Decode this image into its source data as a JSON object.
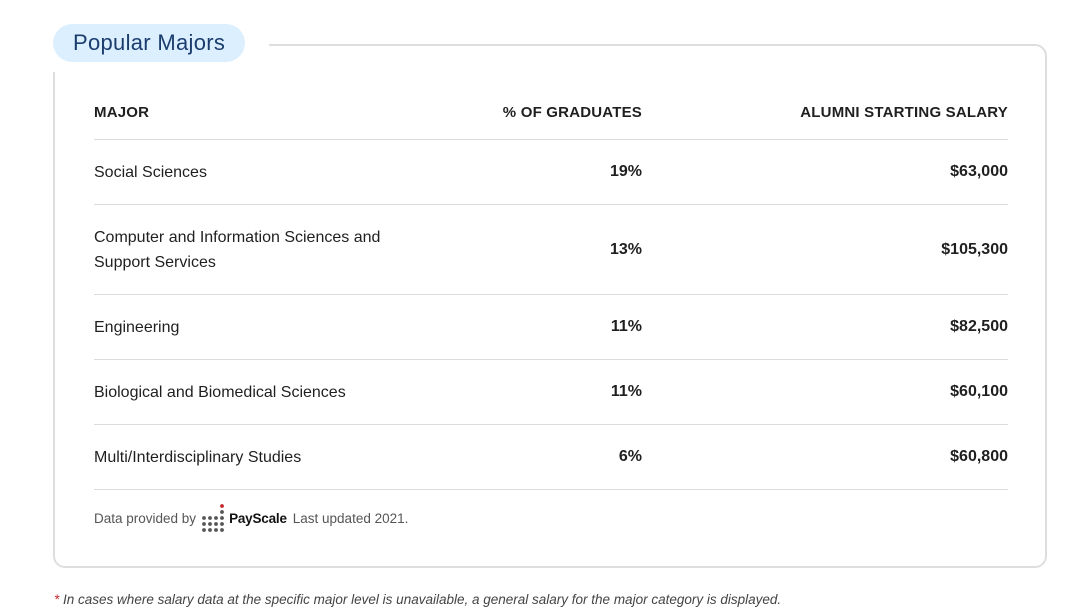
{
  "section": {
    "title": "Popular Majors"
  },
  "table": {
    "headers": {
      "major": "MAJOR",
      "percent": "% OF GRADUATES",
      "salary": "ALUMNI STARTING SALARY"
    },
    "rows": [
      {
        "major": "Social Sciences",
        "percent": "19%",
        "salary": "$63,000"
      },
      {
        "major": "Computer and Information Sciences and Support Services",
        "percent": "13%",
        "salary": "$105,300"
      },
      {
        "major": "Engineering",
        "percent": "11%",
        "salary": "$82,500"
      },
      {
        "major": "Biological and Biomedical Sciences",
        "percent": "11%",
        "salary": "$60,100"
      },
      {
        "major": "Multi/Interdisciplinary Studies",
        "percent": "6%",
        "salary": "$60,800"
      }
    ]
  },
  "footer": {
    "provided_by": "Data provided by",
    "brand": "PayScale",
    "updated": "Last updated 2021."
  },
  "note": {
    "asterisk": "*",
    "text": "In cases where salary data at the specific major level is unavailable, a general salary for the major category is displayed."
  },
  "colors": {
    "tab_bg": "#dcefff",
    "tab_text": "#1a3d6e",
    "brand_accent": "#c0282d"
  }
}
